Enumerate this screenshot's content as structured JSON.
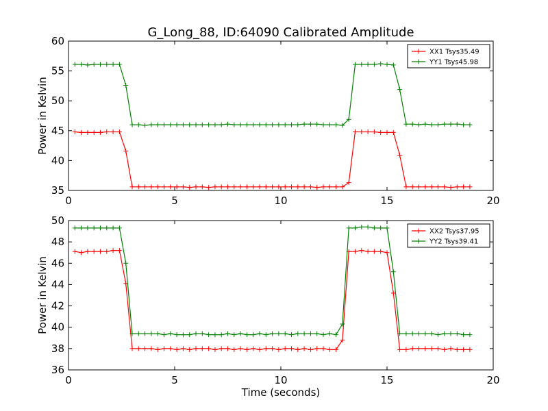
{
  "figure": {
    "title": "G_Long_88, ID:64090 Calibrated Amplitude",
    "xlabel": "Time (seconds)"
  },
  "chart_data": [
    {
      "type": "line",
      "title": "G_Long_88, ID:64090 Calibrated Amplitude",
      "xlabel": "",
      "ylabel": "Power in Kelvin",
      "xlim": [
        0,
        20
      ],
      "ylim": [
        35,
        60
      ],
      "xticks": [
        0,
        5,
        10,
        15,
        20
      ],
      "yticks": [
        35,
        40,
        45,
        50,
        55,
        60
      ],
      "grid": false,
      "legend_position": "top-right",
      "x": [
        0.3,
        0.6,
        0.9,
        1.2,
        1.5,
        1.8,
        2.1,
        2.4,
        2.7,
        3.0,
        3.3,
        3.6,
        3.9,
        4.2,
        4.5,
        4.8,
        5.1,
        5.4,
        5.7,
        6.0,
        6.3,
        6.6,
        6.9,
        7.2,
        7.5,
        7.8,
        8.1,
        8.4,
        8.7,
        9.0,
        9.3,
        9.6,
        9.9,
        10.2,
        10.5,
        10.8,
        11.1,
        11.4,
        11.7,
        12.0,
        12.3,
        12.6,
        12.9,
        13.2,
        13.5,
        13.8,
        14.1,
        14.4,
        14.7,
        15.0,
        15.3,
        15.6,
        15.9,
        16.2,
        16.5,
        16.8,
        17.1,
        17.4,
        17.7,
        18.0,
        18.3,
        18.6,
        18.9
      ],
      "series": [
        {
          "name": "XX1 Tsys35.49",
          "color": "#ff0000",
          "values": [
            44.8,
            44.7,
            44.7,
            44.7,
            44.7,
            44.8,
            44.8,
            44.8,
            41.6,
            35.6,
            35.6,
            35.6,
            35.6,
            35.6,
            35.6,
            35.6,
            35.6,
            35.6,
            35.5,
            35.6,
            35.6,
            35.5,
            35.6,
            35.6,
            35.6,
            35.6,
            35.6,
            35.6,
            35.6,
            35.6,
            35.6,
            35.6,
            35.6,
            35.6,
            35.6,
            35.6,
            35.6,
            35.6,
            35.5,
            35.6,
            35.6,
            35.6,
            35.6,
            36.3,
            44.8,
            44.8,
            44.8,
            44.8,
            44.7,
            44.7,
            44.7,
            40.9,
            35.6,
            35.6,
            35.6,
            35.6,
            35.6,
            35.6,
            35.6,
            35.5,
            35.6,
            35.6,
            35.6
          ]
        },
        {
          "name": "YY1 Tsys45.98",
          "color": "#008000",
          "values": [
            56.1,
            56.1,
            56.0,
            56.1,
            56.1,
            56.1,
            56.1,
            56.1,
            52.6,
            46.0,
            46.0,
            45.9,
            46.0,
            46.0,
            46.0,
            46.0,
            46.0,
            46.0,
            46.0,
            46.0,
            46.0,
            46.0,
            46.0,
            46.0,
            46.1,
            46.0,
            46.0,
            46.0,
            46.0,
            46.0,
            46.0,
            46.0,
            46.0,
            46.0,
            46.0,
            46.0,
            46.1,
            46.1,
            46.1,
            46.0,
            46.0,
            46.0,
            45.9,
            46.9,
            56.1,
            56.1,
            56.1,
            56.1,
            56.2,
            56.1,
            56.0,
            51.9,
            46.1,
            46.1,
            46.0,
            46.1,
            46.0,
            46.0,
            46.1,
            46.1,
            46.1,
            46.0,
            46.0
          ]
        }
      ]
    },
    {
      "type": "line",
      "title": "",
      "xlabel": "Time (seconds)",
      "ylabel": "Power in Kelvin",
      "xlim": [
        0,
        20
      ],
      "ylim": [
        36,
        50
      ],
      "xticks": [
        0,
        5,
        10,
        15,
        20
      ],
      "yticks": [
        36,
        38,
        40,
        42,
        44,
        46,
        48,
        50
      ],
      "grid": false,
      "legend_position": "top-right",
      "x": [
        0.3,
        0.6,
        0.9,
        1.2,
        1.5,
        1.8,
        2.1,
        2.4,
        2.7,
        3.0,
        3.3,
        3.6,
        3.9,
        4.2,
        4.5,
        4.8,
        5.1,
        5.4,
        5.7,
        6.0,
        6.3,
        6.6,
        6.9,
        7.2,
        7.5,
        7.8,
        8.1,
        8.4,
        8.7,
        9.0,
        9.3,
        9.6,
        9.9,
        10.2,
        10.5,
        10.8,
        11.1,
        11.4,
        11.7,
        12.0,
        12.3,
        12.6,
        12.9,
        13.2,
        13.5,
        13.8,
        14.1,
        14.4,
        14.7,
        15.0,
        15.3,
        15.6,
        15.9,
        16.2,
        16.5,
        16.8,
        17.1,
        17.4,
        17.7,
        18.0,
        18.3,
        18.6,
        18.9
      ],
      "series": [
        {
          "name": "XX2 Tsys37.95",
          "color": "#ff0000",
          "values": [
            47.1,
            47.0,
            47.1,
            47.1,
            47.1,
            47.1,
            47.2,
            47.2,
            44.1,
            38.0,
            38.0,
            38.0,
            38.0,
            37.9,
            38.0,
            38.0,
            37.9,
            38.0,
            37.9,
            38.0,
            38.0,
            38.0,
            37.9,
            38.0,
            38.0,
            37.9,
            38.0,
            37.9,
            38.0,
            37.9,
            38.0,
            38.0,
            37.9,
            38.0,
            38.0,
            37.9,
            38.0,
            37.9,
            38.0,
            38.0,
            37.9,
            37.9,
            38.8,
            47.1,
            47.1,
            47.2,
            47.1,
            47.1,
            47.1,
            47.0,
            43.2,
            37.9,
            37.9,
            38.0,
            38.0,
            38.0,
            38.0,
            38.0,
            37.9,
            38.0,
            37.9,
            37.9,
            37.9
          ]
        },
        {
          "name": "YY2 Tsys39.41",
          "color": "#008000",
          "values": [
            49.3,
            49.3,
            49.3,
            49.3,
            49.3,
            49.3,
            49.3,
            49.3,
            46.0,
            39.4,
            39.4,
            39.4,
            39.4,
            39.4,
            39.3,
            39.4,
            39.3,
            39.3,
            39.3,
            39.4,
            39.4,
            39.3,
            39.3,
            39.3,
            39.4,
            39.3,
            39.4,
            39.3,
            39.3,
            39.4,
            39.3,
            39.4,
            39.4,
            39.4,
            39.3,
            39.4,
            39.4,
            39.4,
            39.4,
            39.3,
            39.4,
            39.3,
            40.3,
            49.3,
            49.3,
            49.4,
            49.4,
            49.3,
            49.3,
            49.3,
            45.2,
            39.4,
            39.4,
            39.4,
            39.4,
            39.4,
            39.4,
            39.3,
            39.4,
            39.4,
            39.4,
            39.3,
            39.3
          ]
        }
      ]
    }
  ]
}
